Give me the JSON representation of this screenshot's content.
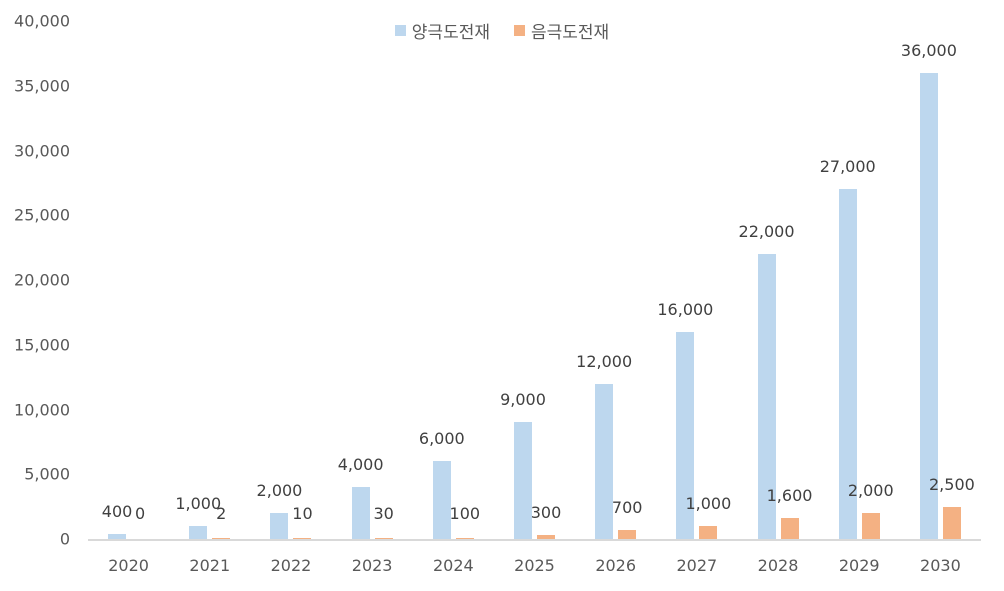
{
  "legend": [
    {
      "label": "양극도전재",
      "color": "#bdd7ee"
    },
    {
      "label": "음극도전재",
      "color": "#f4b183"
    }
  ],
  "y_axis": {
    "ticks": [
      "0",
      "5,000",
      "10,000",
      "15,000",
      "20,000",
      "25,000",
      "30,000",
      "35,000",
      "40,000"
    ]
  },
  "chart_data": {
    "type": "bar",
    "title": "",
    "xlabel": "",
    "ylabel": "",
    "ylim": [
      0,
      40000
    ],
    "grid": false,
    "legend_position": "top",
    "categories": [
      "2020",
      "2021",
      "2022",
      "2023",
      "2024",
      "2025",
      "2026",
      "2027",
      "2028",
      "2029",
      "2030"
    ],
    "series": [
      {
        "name": "양극도전재",
        "color": "#bdd7ee",
        "values": [
          400,
          1000,
          2000,
          4000,
          6000,
          9000,
          12000,
          16000,
          22000,
          27000,
          36000
        ],
        "labels": [
          "400",
          "1,000",
          "2,000",
          "4,000",
          "6,000",
          "9,000",
          "12,000",
          "16,000",
          "22,000",
          "27,000",
          "36,000"
        ]
      },
      {
        "name": "음극도전재",
        "color": "#f4b183",
        "values": [
          0,
          2,
          10,
          30,
          100,
          300,
          700,
          1000,
          1600,
          2000,
          2500
        ],
        "labels": [
          "0",
          "2",
          "10",
          "30",
          "100",
          "300",
          "700",
          "1,000",
          "1,600",
          "2,000",
          "2,500"
        ]
      }
    ]
  }
}
